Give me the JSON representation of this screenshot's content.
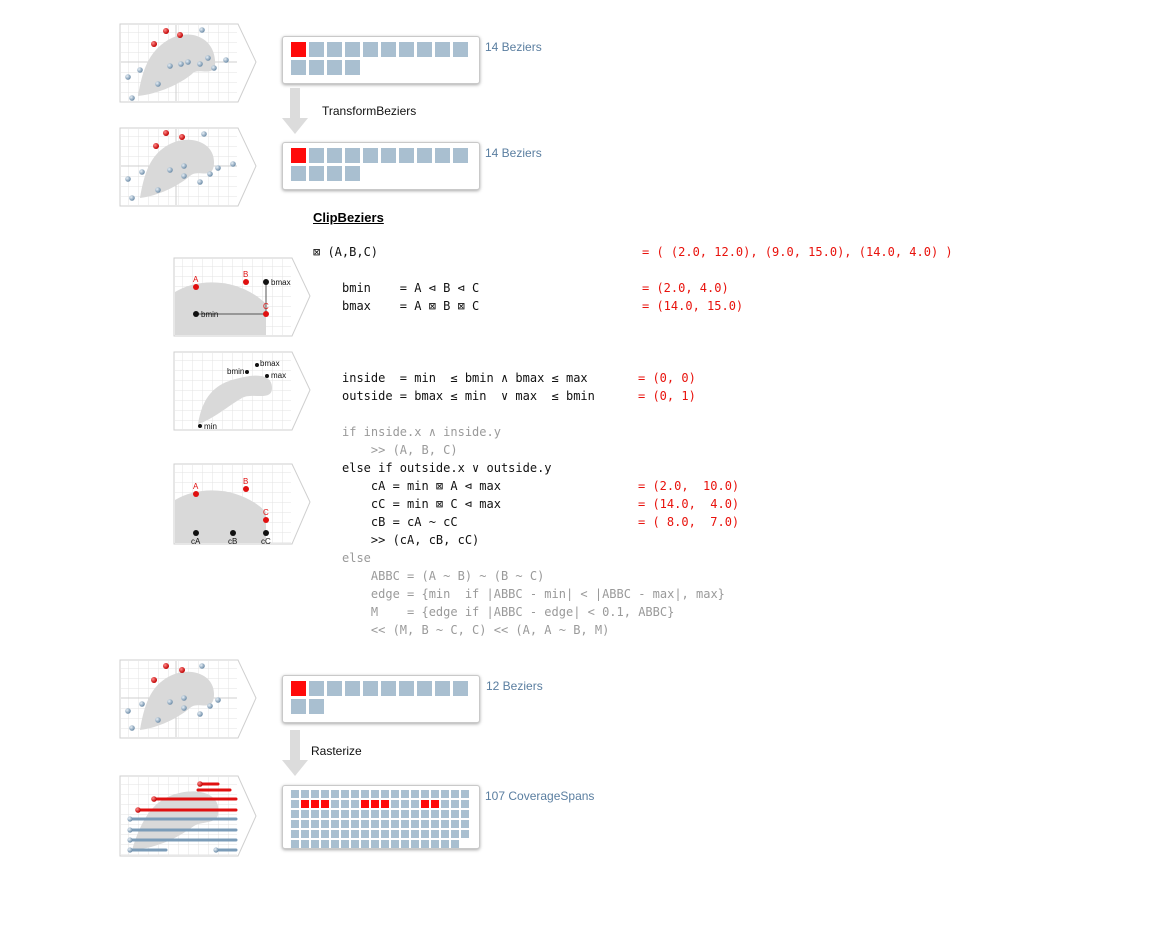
{
  "colors": {
    "bezier_active": "#ff0a0a",
    "bezier_idle": "#a9bfd0",
    "span_blue": "#7b9cb8",
    "span_red": "#e01010",
    "shape_fill": "#d9d9d9",
    "grid_line": "#e3e3e3",
    "count_text": "#5a7ea0",
    "code_red": "#e8120c",
    "code_gray": "#9a9a9a"
  },
  "stages": {
    "s1": {
      "count_label": "14 Beziers",
      "cells": 14,
      "active": 1
    },
    "s2": {
      "count_label": "14 Beziers",
      "cells": 14,
      "active": 1
    },
    "s3": {
      "count_label": "12 Beziers",
      "cells": 12,
      "active": 1
    },
    "s4": {
      "count_label": "107 CoverageSpans",
      "cells": 107,
      "red_cells": [
        19,
        20,
        21,
        25,
        26,
        27,
        31,
        32
      ]
    }
  },
  "steps": {
    "transform": "TransformBeziers",
    "rasterize": "Rasterize"
  },
  "clip": {
    "title": "ClipBeziers",
    "thumb1_labels": {
      "a": "A",
      "b": "B",
      "c": "C",
      "bmax": "bmax",
      "bmin": "bmin"
    },
    "thumb2_labels": {
      "bmin": "bmin",
      "bmax": "bmax",
      "max": "max",
      "min": "min"
    },
    "thumb3_labels": {
      "a": "A",
      "b": "B",
      "c": "C",
      "ca": "cA",
      "cb": "cB",
      "cc": "cC"
    },
    "lines": [
      {
        "text": "⊠ (A,B,C)",
        "value": "= ( (2.0, 12.0), (9.0, 15.0), (14.0, 4.0) )"
      },
      {
        "text": "bmin    = A ⊲ B ⊲ C",
        "value": "= (2.0, 4.0)"
      },
      {
        "text": "bmax    = A ⊠ B ⊠ C",
        "value": "= (14.0, 15.0)"
      },
      {
        "text": "inside  = min  ≤ bmin ∧ bmax ≤ max",
        "value": "= (0, 0)"
      },
      {
        "text": "outside = bmax ≤ min  ∨ max  ≤ bmin",
        "value": "= (0, 1)"
      },
      {
        "text": "if inside.x ∧ inside.y"
      },
      {
        "text": "    >> (A, B, C)"
      },
      {
        "text": "else if outside.x ∨ outside.y"
      },
      {
        "text": "    cA = min ⊠ A ⊲ max",
        "value": "= (2.0,  10.0)"
      },
      {
        "text": "    cC = min ⊠ C ⊲ max",
        "value": "= (14.0,  4.0)"
      },
      {
        "text": "    cB = cA ~ cC",
        "value": "= ( 8.0,  7.0)"
      },
      {
        "text": "    >> (cA, cB, cC)"
      },
      {
        "text": "else"
      },
      {
        "text": "    ABBC = (A ~ B) ~ (B ~ C)"
      },
      {
        "text": "    edge = {min  if |ABBC - min| < |ABBC - max|, max}"
      },
      {
        "text": "    M    = {edge if |ABBC - edge| < 0.1, ABBC}"
      },
      {
        "text": "    << (M, B ~ C, C) << (A, A ~ B, M)"
      }
    ]
  }
}
